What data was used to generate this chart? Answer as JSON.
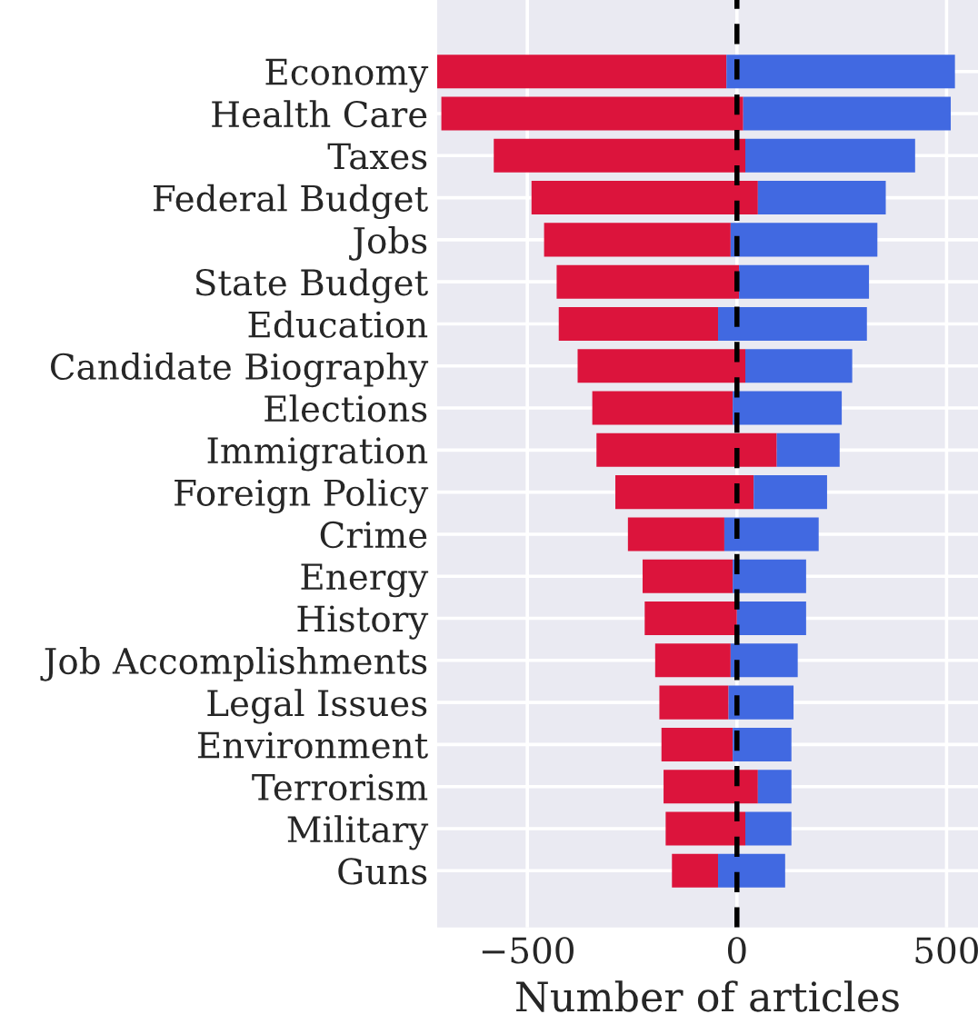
{
  "chart_data": {
    "type": "bar",
    "orientation": "horizontal",
    "xlabel": "Number of articles",
    "categories": [
      "Economy",
      "Health Care",
      "Taxes",
      "Federal Budget",
      "Jobs",
      "State Budget",
      "Education",
      "Candidate Biography",
      "Elections",
      "Immigration",
      "Foreign Policy",
      "Crime",
      "Energy",
      "History",
      "Job Accomplishments",
      "Legal Issues",
      "Environment",
      "Terrorism",
      "Military",
      "Guns"
    ],
    "series": [
      {
        "color": "#dc143c",
        "base": [
          -25,
          15,
          20,
          50,
          -15,
          5,
          -45,
          20,
          -10,
          95,
          40,
          -30,
          -10,
          0,
          -15,
          -20,
          -10,
          50,
          20,
          -45
        ],
        "values": [
          -690,
          -720,
          -600,
          -540,
          -445,
          -435,
          -380,
          -400,
          -335,
          -430,
          -330,
          -230,
          -215,
          -220,
          -180,
          -165,
          -170,
          -225,
          -190,
          -110
        ]
      },
      {
        "color": "#4169e1",
        "base": [
          -25,
          15,
          20,
          50,
          -15,
          5,
          -45,
          20,
          -10,
          95,
          40,
          -30,
          -10,
          0,
          -15,
          -20,
          -10,
          50,
          20,
          -45
        ],
        "values": [
          545,
          495,
          405,
          305,
          350,
          310,
          355,
          255,
          260,
          150,
          175,
          225,
          175,
          165,
          160,
          155,
          140,
          80,
          110,
          160
        ]
      }
    ],
    "xlim": [
      -715,
      575
    ],
    "xticks": [
      {
        "value": -500,
        "label": "−500"
      },
      0,
      500
    ],
    "ref_lines": [
      {
        "axis": "x",
        "value": 0,
        "color": "#000000",
        "line_style": "dashed"
      }
    ],
    "grid": true,
    "legend": false
  }
}
